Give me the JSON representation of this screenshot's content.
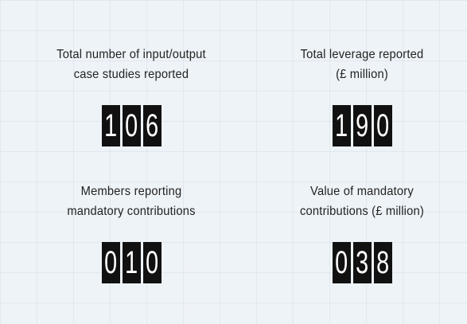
{
  "panels": [
    {
      "label": [
        "Total number of input/output",
        "case studies reported"
      ],
      "digits": [
        "1",
        "0",
        "6"
      ]
    },
    {
      "label": [
        "Total leverage reported",
        "(£ million)"
      ],
      "digits": [
        "1",
        "9",
        "0"
      ]
    },
    {
      "label": [
        "Members reporting",
        "mandatory contributions"
      ],
      "digits": [
        "0",
        "1",
        "0"
      ]
    },
    {
      "label": [
        "Value of mandatory",
        "contributions (£ million)"
      ],
      "digits": [
        "0",
        "3",
        "8"
      ]
    }
  ]
}
